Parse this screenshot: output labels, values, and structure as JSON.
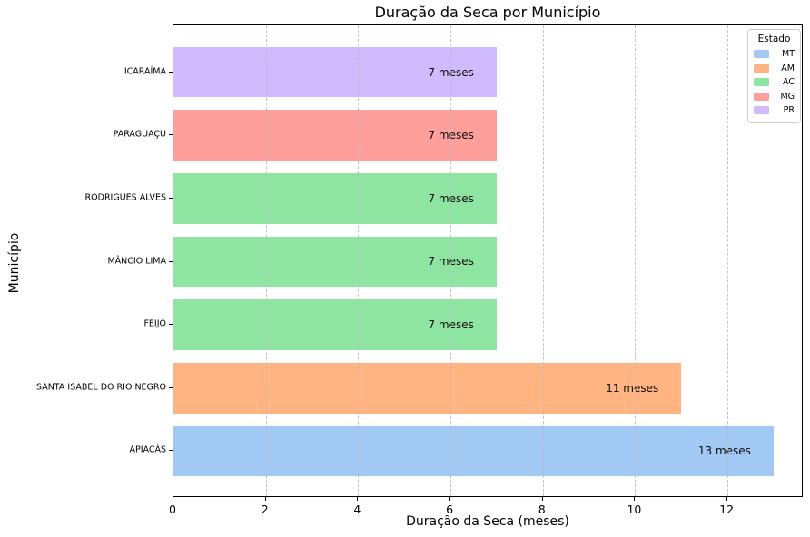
{
  "figure": {
    "title": "Duração da Seca por Município",
    "xlabel": "Duração da Seca (meses)",
    "ylabel": "Município"
  },
  "legend": {
    "title": "Estado",
    "entries": [
      {
        "label": "MT",
        "color": "#a1c9f4"
      },
      {
        "label": "AM",
        "color": "#ffb482"
      },
      {
        "label": "AC",
        "color": "#8de5a1"
      },
      {
        "label": "MG",
        "color": "#ff9f9b"
      },
      {
        "label": "PR",
        "color": "#d0bbff"
      }
    ]
  },
  "chart_data": {
    "type": "bar",
    "orientation": "horizontal",
    "title": "Duração da Seca por Município",
    "xlabel": "Duração da Seca (meses)",
    "ylabel": "Município",
    "xlim": [
      0,
      13.65
    ],
    "x_ticks": [
      0,
      2,
      4,
      6,
      8,
      10,
      12
    ],
    "grid": {
      "axis": "x",
      "style": "dashed",
      "above_bars": true
    },
    "legend": {
      "title": "Estado",
      "position": "upper right",
      "labels": [
        "MT",
        "AM",
        "AC",
        "MG",
        "PR"
      ]
    },
    "bars": [
      {
        "municipio": "ICARAÍMA",
        "estado": "PR",
        "value": 7,
        "label": "7 meses",
        "color": "#d0bbff"
      },
      {
        "municipio": "PARAGUAÇU",
        "estado": "MG",
        "value": 7,
        "label": "7 meses",
        "color": "#ff9f9b"
      },
      {
        "municipio": "RODRIGUES ALVES",
        "estado": "AC",
        "value": 7,
        "label": "7 meses",
        "color": "#8de5a1"
      },
      {
        "municipio": "MÂNCIO LIMA",
        "estado": "AC",
        "value": 7,
        "label": "7 meses",
        "color": "#8de5a1"
      },
      {
        "municipio": "FEIJÓ",
        "estado": "AC",
        "value": 7,
        "label": "7 meses",
        "color": "#8de5a1"
      },
      {
        "municipio": "SANTA ISABEL DO RIO NEGRO",
        "estado": "AM",
        "value": 11,
        "label": "11 meses",
        "color": "#ffb482"
      },
      {
        "municipio": "APIACÁS",
        "estado": "MT",
        "value": 13,
        "label": "13 meses",
        "color": "#a1c9f4"
      }
    ]
  }
}
